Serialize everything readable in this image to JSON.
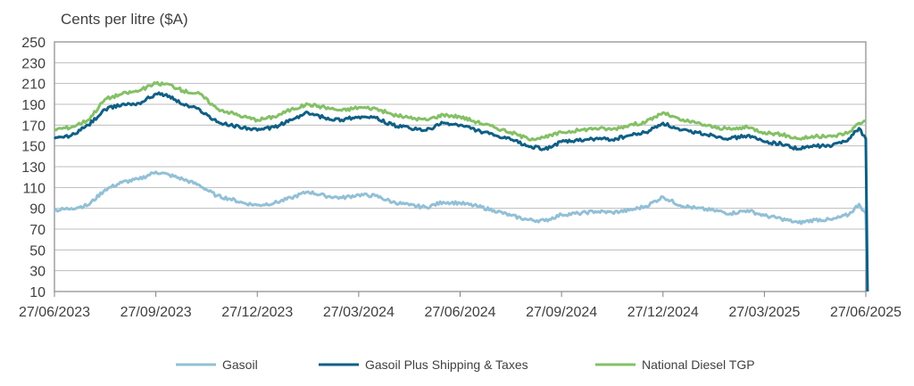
{
  "chart_data": {
    "type": "line",
    "ylabel": "Cents per litre ($A)",
    "ylim": [
      10,
      250
    ],
    "yticks": [
      10,
      30,
      50,
      70,
      90,
      110,
      130,
      150,
      170,
      190,
      210,
      230,
      250
    ],
    "x_tick_labels": [
      "27/06/2023",
      "27/09/2023",
      "27/12/2023",
      "27/03/2024",
      "27/06/2024",
      "27/09/2024",
      "27/12/2024",
      "27/03/2025",
      "27/06/2025"
    ],
    "x_unit": "months since 27/06/2023",
    "xlim": [
      0,
      24
    ],
    "grid": true,
    "legend_position": "bottom",
    "colors": {
      "Gasoil": "#92c0d6",
      "Gasoil Plus Shipping & Taxes": "#0f5f85",
      "National Diesel TGP": "#84c066"
    },
    "series": [
      {
        "name": "Gasoil",
        "x": [
          0,
          0.5,
          1,
          1.5,
          2,
          2.5,
          3,
          3.4,
          3.8,
          4.3,
          4.8,
          5.2,
          5.6,
          6,
          6.5,
          7,
          7.5,
          8,
          8.5,
          9,
          9.5,
          10,
          10.5,
          11,
          11.5,
          12,
          12.5,
          13,
          13.5,
          14,
          14.5,
          15,
          15.5,
          16,
          16.5,
          17,
          17.5,
          18,
          18.5,
          19,
          19.5,
          20,
          20.5,
          21,
          21.5,
          22,
          22.5,
          23,
          23.5,
          23.8,
          24,
          24.05
        ],
        "values": [
          88,
          90,
          93,
          108,
          115,
          118,
          125,
          122,
          118,
          112,
          102,
          99,
          95,
          93,
          95,
          100,
          106,
          102,
          100,
          103,
          102,
          96,
          93,
          91,
          96,
          95,
          92,
          88,
          83,
          79,
          78,
          84,
          85,
          87,
          86,
          88,
          92,
          101,
          93,
          90,
          88,
          85,
          88,
          83,
          80,
          76,
          79,
          79,
          84,
          94,
          85,
          10
        ]
      },
      {
        "name": "Gasoil Plus Shipping & Taxes",
        "x": [
          0,
          0.5,
          1,
          1.5,
          2,
          2.5,
          3,
          3.4,
          3.8,
          4.3,
          4.8,
          5.2,
          5.6,
          6,
          6.5,
          7,
          7.5,
          8,
          8.5,
          9,
          9.5,
          10,
          10.5,
          11,
          11.5,
          12,
          12.5,
          13,
          13.5,
          14,
          14.5,
          15,
          15.5,
          16,
          16.5,
          17,
          17.5,
          18,
          18.5,
          19,
          19.5,
          20,
          20.5,
          21,
          21.5,
          22,
          22.5,
          23,
          23.5,
          23.8,
          24,
          24.05
        ],
        "values": [
          157,
          160,
          170,
          185,
          190,
          191,
          200,
          198,
          190,
          185,
          173,
          170,
          168,
          165,
          168,
          175,
          182,
          177,
          175,
          178,
          177,
          170,
          167,
          165,
          172,
          170,
          165,
          160,
          156,
          150,
          147,
          154,
          155,
          157,
          156,
          160,
          163,
          172,
          165,
          163,
          160,
          157,
          160,
          154,
          152,
          147,
          150,
          150,
          157,
          167,
          157,
          10
        ]
      },
      {
        "name": "National Diesel TGP",
        "x": [
          0,
          0.5,
          1,
          1.5,
          2,
          2.5,
          3,
          3.4,
          3.8,
          4.3,
          4.8,
          5.2,
          5.6,
          6,
          6.5,
          7,
          7.5,
          8,
          8.5,
          9,
          9.5,
          10,
          10.5,
          11,
          11.5,
          12,
          12.5,
          13,
          13.5,
          14,
          14.5,
          15,
          15.5,
          16,
          16.5,
          17,
          17.5,
          18,
          18.5,
          19,
          19.5,
          20,
          20.5,
          21,
          21.5,
          22,
          22.5,
          23,
          23.5,
          23.8,
          24
        ],
        "values": [
          166,
          168,
          175,
          195,
          200,
          203,
          210,
          209,
          203,
          200,
          186,
          182,
          178,
          175,
          178,
          185,
          190,
          187,
          184,
          187,
          186,
          180,
          177,
          175,
          180,
          178,
          173,
          168,
          163,
          157,
          158,
          163,
          165,
          167,
          166,
          170,
          173,
          182,
          175,
          172,
          168,
          166,
          168,
          163,
          161,
          157,
          159,
          159,
          163,
          172,
          174
        ]
      }
    ]
  }
}
